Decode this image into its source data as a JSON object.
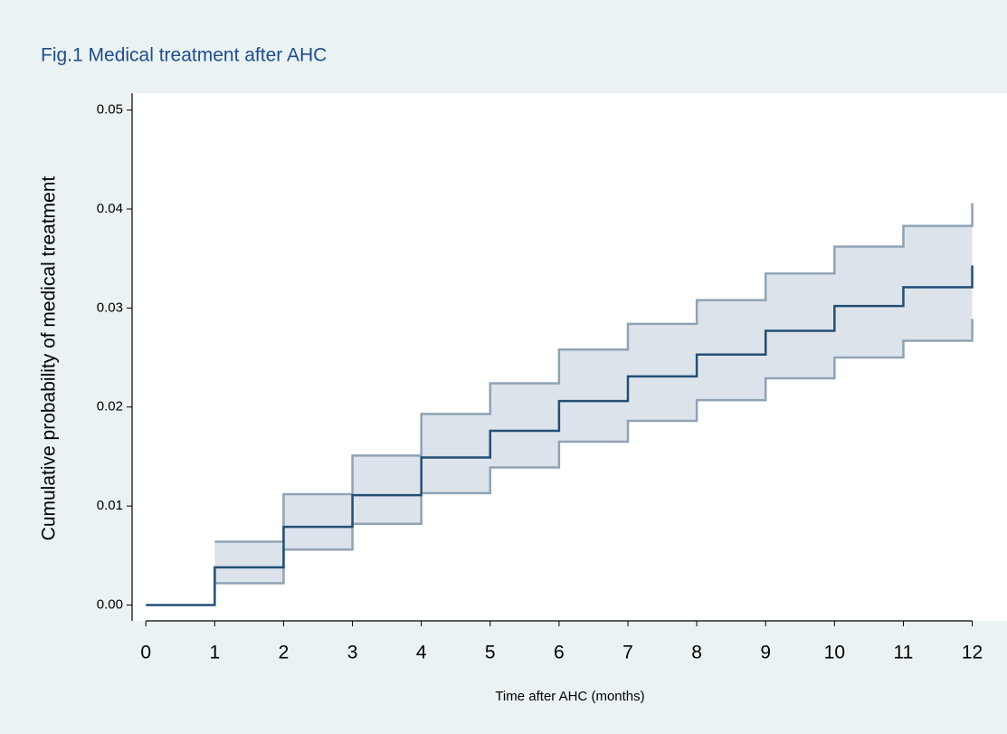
{
  "chart_data": {
    "type": "step",
    "title": "Fig.1 Medical treatment after AHC",
    "x_label": "Time after AHC (months)",
    "y_label": "Cumulative probability of medical treatment",
    "x": [
      0,
      1,
      2,
      3,
      4,
      5,
      6,
      7,
      8,
      9,
      10,
      11,
      12
    ],
    "series": [
      {
        "color": "#234f75",
        "values": [
          0,
          0.0038,
          0.0079,
          0.0111,
          0.0149,
          0.0176,
          0.0206,
          0.0231,
          0.0253,
          0.0277,
          0.0302,
          0.0321,
          0.0343
        ]
      }
    ],
    "ci": {
      "color": "#8fa3b5",
      "fill": "#dde3ea",
      "lower": [
        null,
        0.0022,
        0.0056,
        0.0082,
        0.0113,
        0.0139,
        0.0165,
        0.0186,
        0.0207,
        0.0229,
        0.025,
        0.0267,
        0.0289
      ],
      "upper": [
        null,
        0.0064,
        0.0112,
        0.0151,
        0.0193,
        0.0224,
        0.0258,
        0.0284,
        0.0308,
        0.0335,
        0.0362,
        0.0383,
        0.0406
      ]
    },
    "xlim": [
      -0.2,
      12.4
    ],
    "ylim": [
      -0.0016,
      0.0517
    ],
    "xticks": [
      0,
      1,
      2,
      3,
      4,
      5,
      6,
      7,
      8,
      9,
      10,
      11,
      12
    ],
    "yticks": [
      {
        "value": 0,
        "label": "0.00"
      },
      0.01,
      0.02,
      0.03,
      0.04,
      0.05
    ]
  }
}
